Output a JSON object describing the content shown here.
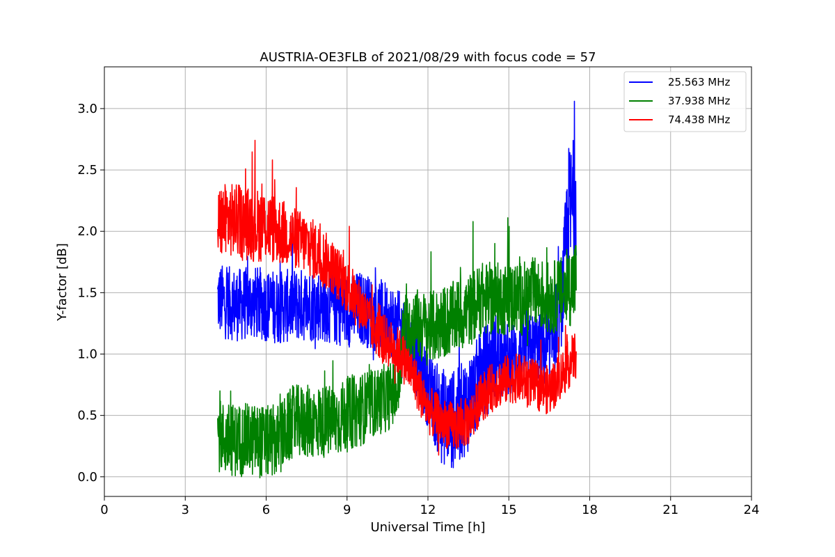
{
  "chart_data": {
    "type": "line",
    "title": "AUSTRIA-OE3FLB of 2021/08/29 with focus code = 57",
    "xlabel": "Universal Time [h]",
    "ylabel": "Y-factor [dB]",
    "xlim": [
      0,
      24
    ],
    "ylim": [
      -0.16,
      3.34
    ],
    "xticks": [
      0,
      3,
      6,
      9,
      12,
      15,
      18,
      21,
      24
    ],
    "yticks": [
      0.0,
      0.5,
      1.0,
      1.5,
      2.0,
      2.5,
      3.0
    ],
    "ytick_labels": [
      "0.0",
      "0.5",
      "1.0",
      "1.5",
      "2.0",
      "2.5",
      "3.0"
    ],
    "grid": true,
    "legend_position": "top-right",
    "series": [
      {
        "name": "25.563 MHz",
        "color": "#0000ff",
        "x": [
          4.2,
          4.5,
          5.0,
          5.5,
          6.0,
          6.5,
          7.0,
          7.5,
          8.0,
          8.5,
          9.0,
          9.5,
          10.0,
          10.5,
          11.0,
          11.5,
          12.0,
          12.5,
          13.0,
          13.3,
          13.5,
          14.0,
          14.5,
          15.0,
          15.5,
          16.0,
          16.5,
          17.0,
          17.2,
          17.5
        ],
        "y": [
          1.45,
          1.42,
          1.4,
          1.42,
          1.4,
          1.38,
          1.4,
          1.4,
          1.4,
          1.38,
          1.35,
          1.38,
          1.32,
          1.3,
          1.2,
          1.0,
          0.7,
          0.5,
          0.45,
          0.55,
          0.6,
          0.85,
          1.0,
          0.95,
          1.0,
          1.05,
          1.0,
          1.5,
          2.1,
          2.3
        ],
        "spread": [
          0.3,
          0.3,
          0.3,
          0.3,
          0.3,
          0.3,
          0.3,
          0.3,
          0.3,
          0.3,
          0.3,
          0.3,
          0.3,
          0.3,
          0.3,
          0.3,
          0.3,
          0.4,
          0.4,
          0.4,
          0.4,
          0.35,
          0.35,
          0.3,
          0.3,
          0.3,
          0.3,
          0.4,
          0.6,
          0.5
        ]
      },
      {
        "name": "37.938 MHz",
        "color": "#008000",
        "x": [
          4.2,
          4.5,
          5.0,
          5.5,
          6.0,
          6.5,
          7.0,
          7.5,
          8.0,
          8.5,
          9.0,
          9.5,
          10.0,
          10.5,
          10.9,
          11.1,
          11.5,
          12.0,
          12.5,
          13.0,
          13.5,
          14.0,
          14.5,
          15.0,
          15.5,
          16.0,
          16.5,
          17.0,
          17.5
        ],
        "y": [
          0.35,
          0.3,
          0.3,
          0.3,
          0.28,
          0.3,
          0.45,
          0.45,
          0.45,
          0.45,
          0.5,
          0.55,
          0.6,
          0.65,
          0.7,
          1.2,
          1.25,
          1.2,
          1.25,
          1.3,
          1.35,
          1.45,
          1.45,
          1.45,
          1.45,
          1.5,
          1.45,
          1.5,
          1.6
        ],
        "spread": [
          0.3,
          0.3,
          0.3,
          0.3,
          0.3,
          0.3,
          0.3,
          0.3,
          0.3,
          0.3,
          0.3,
          0.3,
          0.28,
          0.28,
          0.25,
          0.3,
          0.3,
          0.3,
          0.3,
          0.3,
          0.3,
          0.3,
          0.3,
          0.3,
          0.3,
          0.3,
          0.3,
          0.3,
          0.35
        ]
      },
      {
        "name": "74.438 MHz",
        "color": "#ff0000",
        "x": [
          4.2,
          4.5,
          5.0,
          5.5,
          6.0,
          6.5,
          7.0,
          7.5,
          8.0,
          8.5,
          9.0,
          9.5,
          10.0,
          10.5,
          11.0,
          11.5,
          12.0,
          12.5,
          13.0,
          13.5,
          14.0,
          14.5,
          15.0,
          15.5,
          16.0,
          16.5,
          17.0,
          17.5
        ],
        "y": [
          2.05,
          2.1,
          2.08,
          2.05,
          2.05,
          2.0,
          1.95,
          1.9,
          1.8,
          1.7,
          1.55,
          1.4,
          1.2,
          1.1,
          1.0,
          0.8,
          0.55,
          0.45,
          0.4,
          0.45,
          0.65,
          0.75,
          0.8,
          0.8,
          0.75,
          0.7,
          0.85,
          1.0
        ],
        "spread": [
          0.3,
          0.3,
          0.3,
          0.3,
          0.3,
          0.28,
          0.25,
          0.25,
          0.25,
          0.22,
          0.22,
          0.2,
          0.2,
          0.2,
          0.2,
          0.2,
          0.2,
          0.2,
          0.2,
          0.2,
          0.2,
          0.2,
          0.2,
          0.2,
          0.2,
          0.2,
          0.2,
          0.2
        ]
      }
    ]
  }
}
